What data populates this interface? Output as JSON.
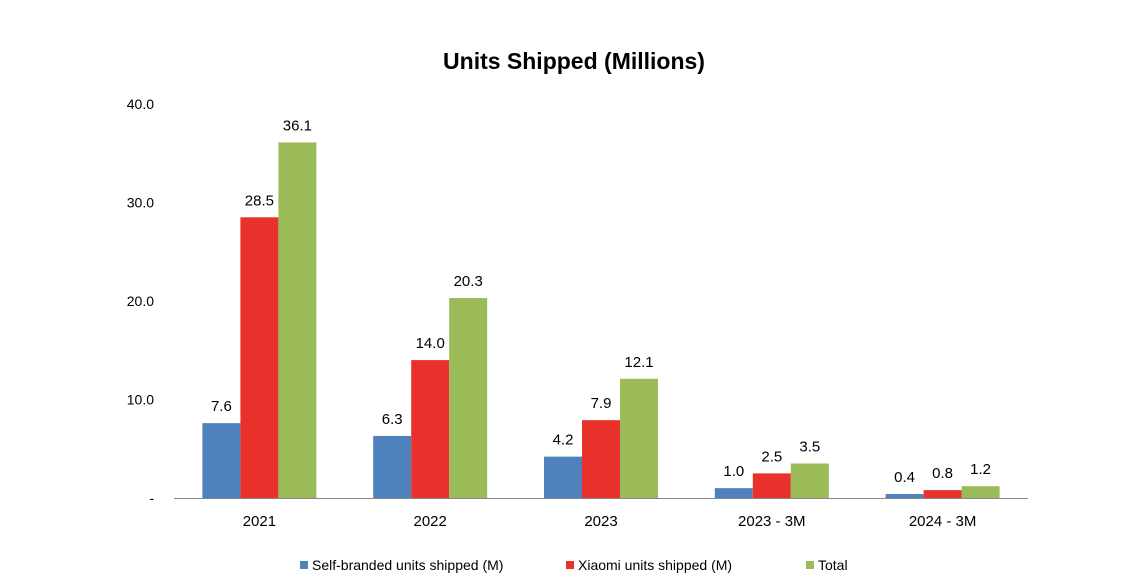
{
  "chart_data": {
    "type": "bar",
    "title": "Units  Shipped (Millions)",
    "categories": [
      "2021",
      "2022",
      "2023",
      "2023 - 3M",
      "2024 - 3M"
    ],
    "series": [
      {
        "name": "Self-branded units shipped (M)",
        "color": "#4F81BD",
        "values": [
          7.6,
          6.3,
          4.2,
          1.0,
          0.4
        ],
        "labels": [
          "7.6",
          "6.3",
          "4.2",
          "1.0",
          "0.4"
        ]
      },
      {
        "name": "Xiaomi units shipped (M)",
        "color": "#E8312A",
        "values": [
          28.5,
          14.0,
          7.9,
          2.5,
          0.8
        ],
        "labels": [
          "28.5",
          "14.0",
          "7.9",
          "2.5",
          "0.8"
        ]
      },
      {
        "name": "Total",
        "color": "#9BBB59",
        "values": [
          36.1,
          20.3,
          12.1,
          3.5,
          1.2
        ],
        "labels": [
          "36.1",
          "20.3",
          "12.1",
          "3.5",
          "1.2"
        ]
      }
    ],
    "yticks": [
      {
        "value": 0,
        "label": "-"
      },
      {
        "value": 10,
        "label": "10.0"
      },
      {
        "value": 20,
        "label": "20.0"
      },
      {
        "value": 30,
        "label": "30.0"
      },
      {
        "value": 40,
        "label": "40.0"
      }
    ],
    "ylim": [
      0,
      40
    ],
    "grid": false,
    "legend_position": "bottom"
  }
}
